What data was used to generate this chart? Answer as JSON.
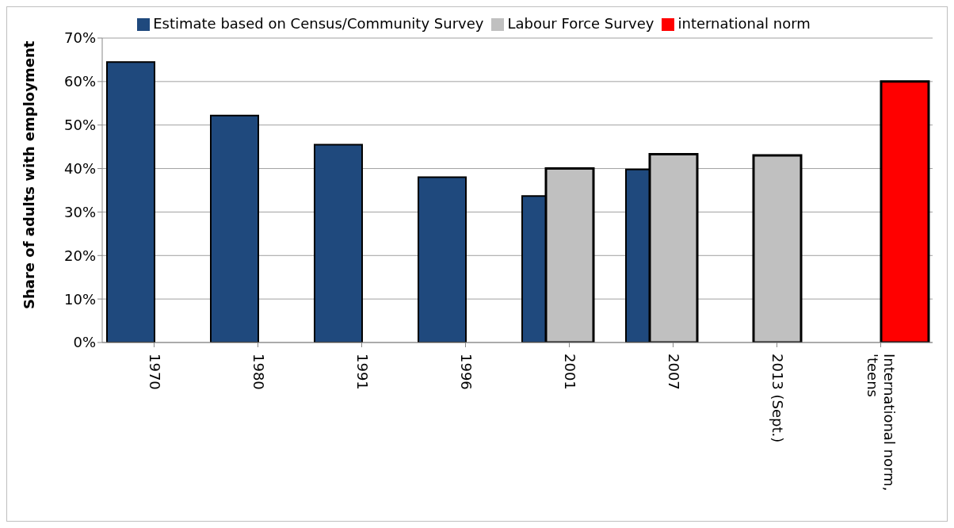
{
  "chart_data": {
    "type": "bar",
    "ylabel": "Share of adults with employment",
    "categories": [
      "1970",
      "1980",
      "1991",
      "1996",
      "2001",
      "2007",
      "2013 (Sept.)",
      "International norm, 'teens"
    ],
    "series": [
      {
        "name": "Estimate based on Census/Community Survey",
        "color": "#1f497d",
        "values": [
          64.5,
          52.2,
          45.5,
          38.0,
          33.7,
          39.8,
          null,
          null
        ]
      },
      {
        "name": "Labour Force Survey",
        "color": "#c0c0c0",
        "values": [
          null,
          null,
          null,
          null,
          40.0,
          43.3,
          43.0,
          null
        ]
      },
      {
        "name": "international norm",
        "color": "#ff0000",
        "values": [
          null,
          null,
          null,
          null,
          null,
          null,
          null,
          60
        ]
      }
    ],
    "ylim": [
      0,
      70
    ],
    "yticks": [
      {
        "value": 0,
        "label": "0%"
      },
      {
        "value": 10,
        "label": "10%"
      },
      {
        "value": 20,
        "label": "20%"
      },
      {
        "value": 30,
        "label": "30%"
      },
      {
        "value": 40,
        "label": "40%"
      },
      {
        "value": 50,
        "label": "50%"
      },
      {
        "value": 60,
        "label": "60%"
      },
      {
        "value": 70,
        "label": "70%"
      }
    ],
    "grid": "y",
    "legend": "top"
  }
}
